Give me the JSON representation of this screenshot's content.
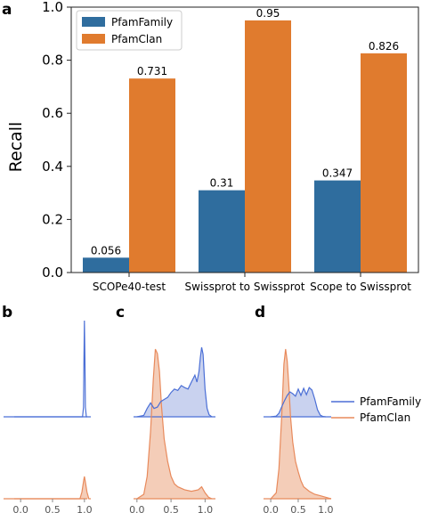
{
  "colors": {
    "PfamFamily": "#2f6d9e",
    "PfamClan": "#e07b2e",
    "family_line": "#4b6fd6",
    "clan_line": "#e88a5c",
    "family_fill": "#c9d2ef",
    "clan_fill": "#f3c8b0"
  },
  "panel_letters": {
    "a": "a",
    "b": "b",
    "c": "c",
    "d": "d"
  },
  "chart_data": [
    {
      "id": "a",
      "type": "bar",
      "ylabel": "Recall",
      "ylim": [
        0,
        1.0
      ],
      "yticks": [
        0.0,
        0.2,
        0.4,
        0.6,
        0.8,
        1.0
      ],
      "ytick_labels": [
        "0.0",
        "0.2",
        "0.4",
        "0.6",
        "0.8",
        "1.0"
      ],
      "categories": [
        "SCOPe40-test",
        "Swissprot to Swissprot",
        "Scope to Swissprot"
      ],
      "series": [
        {
          "name": "PfamFamily",
          "values": [
            0.056,
            0.31,
            0.347
          ],
          "labels": [
            "0.056",
            "0.31",
            "0.347"
          ]
        },
        {
          "name": "PfamClan",
          "values": [
            0.731,
            0.95,
            0.826
          ],
          "labels": [
            "0.731",
            "0.95",
            "0.826"
          ]
        }
      ],
      "legend": "top-left"
    },
    {
      "id": "b",
      "type": "area",
      "xlim": [
        -0.1,
        1.1
      ],
      "xticks": [
        0.0,
        0.5,
        1.0
      ],
      "xtick_labels": [
        "0.0",
        "0.5",
        "1.0"
      ],
      "series": [
        {
          "name": "PfamFamily",
          "x": [
            -0.1,
            0.97,
            0.985,
            0.992,
            1.0,
            1.008,
            1.015,
            1.03,
            1.1
          ],
          "y": [
            0,
            0,
            0.1,
            0.6,
            1.0,
            0.6,
            0.1,
            0,
            0
          ]
        },
        {
          "name": "PfamClan",
          "x": [
            -0.1,
            0.93,
            0.96,
            0.99,
            1.0,
            1.01,
            1.04,
            1.07,
            1.1
          ],
          "y": [
            0,
            0,
            0.3,
            0.85,
            1.0,
            0.85,
            0.3,
            0,
            0
          ]
        }
      ]
    },
    {
      "id": "c",
      "type": "area",
      "xlim": [
        -0.05,
        1.1
      ],
      "xticks": [
        0.0,
        0.5,
        1.0
      ],
      "xtick_labels": [
        "0.0",
        "0.5",
        "1.0"
      ],
      "series": [
        {
          "name": "PfamFamily",
          "x": [
            0.0,
            0.1,
            0.15,
            0.2,
            0.25,
            0.3,
            0.35,
            0.4,
            0.45,
            0.5,
            0.55,
            0.6,
            0.65,
            0.7,
            0.75,
            0.8,
            0.85,
            0.88,
            0.91,
            0.93,
            0.95,
            0.97,
            1.0,
            1.03,
            1.06,
            1.1
          ],
          "y": [
            0,
            0.02,
            0.12,
            0.2,
            0.12,
            0.14,
            0.22,
            0.25,
            0.28,
            0.35,
            0.4,
            0.38,
            0.45,
            0.42,
            0.4,
            0.5,
            0.6,
            0.5,
            0.65,
            0.85,
            1.0,
            0.9,
            0.4,
            0.12,
            0.03,
            0
          ]
        },
        {
          "name": "PfamClan",
          "x": [
            0.0,
            0.1,
            0.15,
            0.2,
            0.24,
            0.27,
            0.3,
            0.33,
            0.36,
            0.4,
            0.45,
            0.5,
            0.55,
            0.6,
            0.7,
            0.8,
            0.9,
            0.95,
            1.0,
            1.05,
            1.1
          ],
          "y": [
            0,
            0.03,
            0.15,
            0.45,
            0.8,
            1.0,
            0.97,
            0.85,
            0.62,
            0.4,
            0.25,
            0.15,
            0.1,
            0.08,
            0.06,
            0.05,
            0.06,
            0.08,
            0.04,
            0.01,
            0
          ]
        }
      ]
    },
    {
      "id": "d",
      "type": "area",
      "xlim": [
        -0.05,
        1.1
      ],
      "xticks": [
        0.0,
        0.5,
        1.0
      ],
      "xtick_labels": [
        "0.0",
        "0.5",
        "1.0"
      ],
      "series": [
        {
          "name": "PfamFamily",
          "x": [
            0.0,
            0.1,
            0.15,
            0.2,
            0.25,
            0.3,
            0.35,
            0.4,
            0.45,
            0.5,
            0.55,
            0.6,
            0.65,
            0.7,
            0.75,
            0.8,
            0.85,
            0.9,
            0.95,
            1.0
          ],
          "y": [
            0,
            0.02,
            0.1,
            0.28,
            0.45,
            0.6,
            0.7,
            0.65,
            0.58,
            0.78,
            0.6,
            0.8,
            0.62,
            0.82,
            0.75,
            0.5,
            0.2,
            0.05,
            0.01,
            0
          ]
        },
        {
          "name": "PfamClan",
          "x": [
            0.0,
            0.1,
            0.15,
            0.2,
            0.24,
            0.27,
            0.3,
            0.33,
            0.36,
            0.4,
            0.45,
            0.5,
            0.55,
            0.6,
            0.7,
            0.8,
            0.9,
            1.0,
            1.05,
            1.1
          ],
          "y": [
            0,
            0.04,
            0.2,
            0.55,
            0.9,
            1.0,
            0.92,
            0.75,
            0.55,
            0.38,
            0.25,
            0.18,
            0.12,
            0.08,
            0.05,
            0.03,
            0.02,
            0.01,
            0.005,
            0
          ]
        }
      ]
    }
  ],
  "density_legend": [
    {
      "name": "PfamFamily"
    },
    {
      "name": "PfamClan"
    }
  ]
}
